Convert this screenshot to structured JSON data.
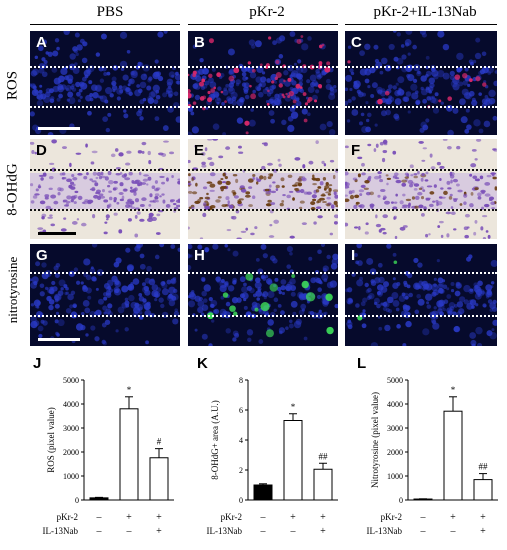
{
  "columns": [
    {
      "title": "PBS"
    },
    {
      "title": "pKr-2"
    },
    {
      "title": "pKr-2+IL-13Nab"
    }
  ],
  "rows": [
    {
      "label": "ROS",
      "panels": [
        "A",
        "B",
        "C"
      ]
    },
    {
      "label": "8-OHdG",
      "panels": [
        "D",
        "E",
        "F"
      ]
    },
    {
      "label": "nitrotyrosine",
      "panels": [
        "G",
        "H",
        "I"
      ]
    }
  ],
  "colors": {
    "fluor_background": "#060a2c",
    "nuclei_blue": "#2a3ac8",
    "ros_red": "#d8286a",
    "nitrotyrosine_green": "#3ee05a",
    "cresyl_violet": "#7a4fb8",
    "oxidized_brown": "#6a3c10",
    "bar_black": "#000000",
    "bar_white": "#ffffff"
  },
  "treatment_rows": [
    {
      "label": "pKr-2",
      "signs": [
        "–",
        "+",
        "+"
      ]
    },
    {
      "label": "IL-13Nab",
      "signs": [
        "–",
        "–",
        "+"
      ]
    }
  ],
  "chart_data": [
    {
      "panel": "J",
      "type": "bar",
      "categories": [
        "PBS",
        "pKr-2",
        "pKr-2+IL-13Nab"
      ],
      "values": [
        90,
        3800,
        1760
      ],
      "errors": [
        20,
        500,
        380
      ],
      "bar_fills": [
        "#000000",
        "#ffffff",
        "#ffffff"
      ],
      "annotations": [
        "",
        "*",
        "#"
      ],
      "ylabel": "ROS (pixel value)",
      "ylim": [
        0,
        5000
      ],
      "yticks": [
        "0",
        "1000",
        "2000",
        "3000",
        "4000",
        "5000"
      ],
      "ytick_values": [
        0,
        1000,
        2000,
        3000,
        4000,
        5000
      ]
    },
    {
      "panel": "K",
      "type": "bar",
      "categories": [
        "PBS",
        "pKr-2",
        "pKr-2+IL-13Nab"
      ],
      "values": [
        1.0,
        5.3,
        2.05
      ],
      "errors": [
        0.08,
        0.45,
        0.4
      ],
      "bar_fills": [
        "#000000",
        "#ffffff",
        "#ffffff"
      ],
      "annotations": [
        "",
        "*",
        "##"
      ],
      "ylabel": "8-OHdG+ area (A.U.)",
      "ylim": [
        0,
        8
      ],
      "yticks": [
        "0",
        "2",
        "4",
        "6",
        "8"
      ],
      "ytick_values": [
        0,
        2,
        4,
        6,
        8
      ]
    },
    {
      "panel": "L",
      "type": "bar",
      "categories": [
        "PBS",
        "pKr-2",
        "pKr-2+IL-13Nab"
      ],
      "values": [
        40,
        3700,
        850
      ],
      "errors": [
        10,
        600,
        250
      ],
      "bar_fills": [
        "#000000",
        "#ffffff",
        "#ffffff"
      ],
      "annotations": [
        "",
        "*",
        "##"
      ],
      "ylabel": "Nitrotyrosine (pixel value)",
      "ylim": [
        0,
        5000
      ],
      "yticks": [
        "0",
        "1000",
        "2000",
        "3000",
        "4000",
        "5000"
      ],
      "ytick_values": [
        0,
        1000,
        2000,
        3000,
        4000,
        5000
      ]
    }
  ]
}
